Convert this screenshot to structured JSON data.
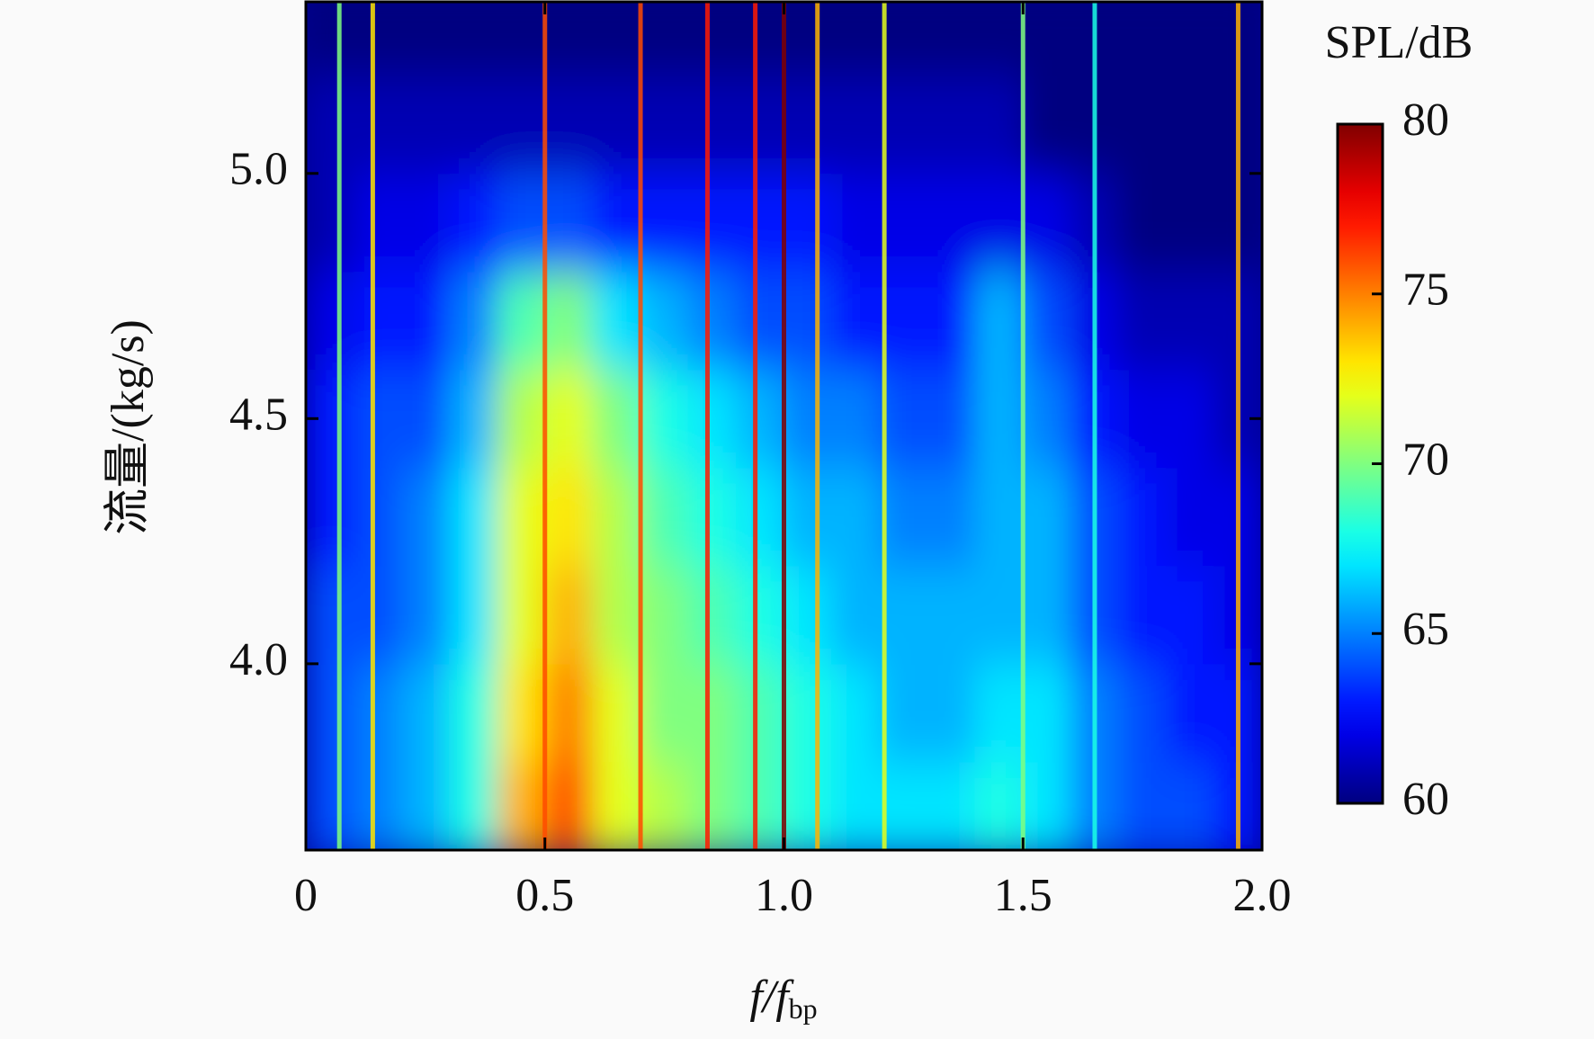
{
  "chart_data": {
    "type": "heatmap",
    "xlabel": "f/f",
    "xlabel_sub": "bp",
    "ylabel": "流量/(kg/s)",
    "colorbar_title": "SPL/dB",
    "colormap": "jet",
    "xlim": [
      0,
      2
    ],
    "xticks": [
      0,
      0.5,
      {
        "value": 1,
        "label": "1.0"
      },
      1.5,
      {
        "value": 2,
        "label": "2.0"
      }
    ],
    "ylim": [
      3.62,
      5.35
    ],
    "yticks": [
      {
        "value": 4,
        "label": "4.0"
      },
      4.5,
      {
        "value": 5,
        "label": "5.0"
      }
    ],
    "zlim": [
      60,
      80
    ],
    "zticks": [
      60,
      65,
      70,
      75,
      80
    ],
    "x": [
      0.05,
      0.15,
      0.25,
      0.35,
      0.45,
      0.55,
      0.65,
      0.75,
      0.85,
      0.95,
      1.05,
      1.15,
      1.25,
      1.35,
      1.45,
      1.55,
      1.65,
      1.75,
      1.85,
      1.95
    ],
    "y": [
      3.7,
      3.9,
      4.1,
      4.3,
      4.5,
      4.7,
      4.9,
      5.1,
      5.3
    ],
    "z": [
      [
        64,
        65,
        66,
        68,
        74,
        76,
        72,
        71,
        70,
        69,
        68,
        67,
        67,
        67,
        68,
        67,
        65,
        64,
        64,
        63
      ],
      [
        64,
        65,
        66,
        68,
        73,
        75,
        72,
        70,
        70,
        69,
        68,
        67,
        66,
        66,
        67,
        67,
        65,
        64,
        63,
        63
      ],
      [
        64,
        64,
        65,
        67,
        72,
        74,
        71,
        70,
        69,
        68,
        67,
        66,
        66,
        66,
        66,
        66,
        64,
        63,
        63,
        62
      ],
      [
        63,
        64,
        65,
        67,
        72,
        73,
        71,
        69,
        68,
        67,
        66,
        66,
        65,
        65,
        66,
        66,
        64,
        63,
        62,
        62
      ],
      [
        63,
        64,
        64,
        66,
        71,
        72,
        70,
        68,
        67,
        66,
        65,
        65,
        64,
        64,
        66,
        65,
        63,
        62,
        62,
        61
      ],
      [
        62,
        63,
        63,
        65,
        69,
        70,
        67,
        66,
        65,
        64,
        64,
        63,
        63,
        63,
        66,
        64,
        62,
        61,
        61,
        61
      ],
      [
        61,
        62,
        62,
        63,
        64,
        64,
        63,
        63,
        63,
        63,
        63,
        62,
        62,
        62,
        62,
        62,
        61,
        60,
        60,
        60
      ],
      [
        61,
        61,
        61,
        61,
        61,
        61,
        61,
        61,
        61,
        61,
        61,
        61,
        61,
        61,
        61,
        60,
        60,
        60,
        60,
        60
      ],
      [
        60,
        60,
        60,
        60,
        60,
        60,
        60,
        60,
        60,
        60,
        60,
        60,
        60,
        60,
        60,
        60,
        60,
        60,
        60,
        60
      ]
    ],
    "tones": {
      "x": [
        0.07,
        0.14,
        0.5,
        0.7,
        0.84,
        0.94,
        1.0,
        1.07,
        1.21,
        1.5,
        1.65,
        1.95
      ],
      "values": [
        70,
        73,
        76,
        76,
        77,
        77,
        80,
        74,
        72,
        70,
        68,
        74
      ]
    }
  }
}
